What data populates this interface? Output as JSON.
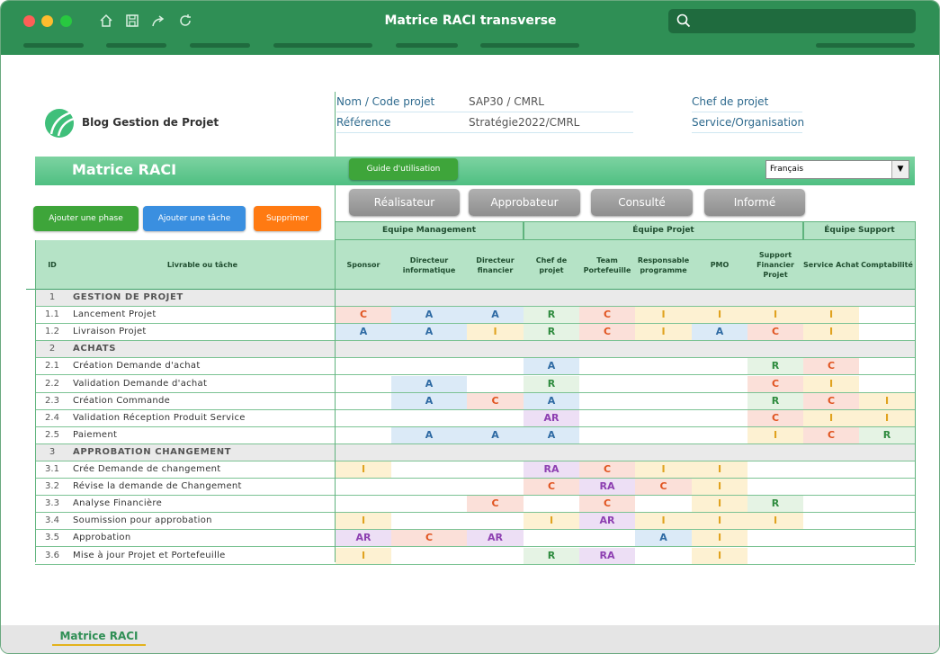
{
  "window": {
    "title": "Matrice RACI transverse",
    "sheet_tab": "Matrice RACI"
  },
  "logo": {
    "text": "Blog Gestion de Projet"
  },
  "info": {
    "nom_label": "Nom / Code projet",
    "nom_value": "SAP30 / CMRL",
    "ref_label": "Référence",
    "ref_value": "Stratégie2022/CMRL",
    "chef_label": "Chef de projet",
    "service_label": "Service/Organisation"
  },
  "banner": {
    "title": "Matrice RACI",
    "guide_label": "Guide d'utilisation",
    "language": "Français"
  },
  "roles": {
    "r": "Réalisateur",
    "a": "Approbateur",
    "c": "Consulté",
    "i": "Informé"
  },
  "actions": {
    "add_phase": "Ajouter une phase",
    "add_task": "Ajouter une tâche",
    "delete": "Supprimer"
  },
  "colors": {
    "R": "#2e8b3e",
    "A": "#2e6aa3",
    "C": "#e0531f",
    "I": "#e0a21f",
    "AR": "#8d3fb1",
    "RA": "#8d3fb1",
    "accent": "#2f8f55"
  },
  "table": {
    "id_header": "ID",
    "task_header": "Livrable ou tâche",
    "groups": [
      {
        "label": "Equipe Management",
        "span": 3
      },
      {
        "label": "Équipe Projet",
        "span": 5
      },
      {
        "label": "Équipe Support",
        "span": 2
      }
    ],
    "columns": [
      "Sponsor",
      "Directeur informatique",
      "Directeur financier",
      "Chef de projet",
      "Team Portefeuille",
      "Responsable programme",
      "PMO",
      "Support Financier Projet",
      "Service Achat",
      "Comptabilité"
    ],
    "rows": [
      {
        "id": "1",
        "task": "GESTION DE PROJET",
        "phase": true,
        "cells": []
      },
      {
        "id": "1.1",
        "task": "Lancement Projet",
        "cells": [
          "C",
          "A",
          "A",
          "R",
          "C",
          "I",
          "I",
          "I",
          "I",
          ""
        ]
      },
      {
        "id": "1.2",
        "task": "Livraison Projet",
        "cells": [
          "A",
          "A",
          "I",
          "R",
          "C",
          "I",
          "A",
          "C",
          "I",
          ""
        ]
      },
      {
        "id": "2",
        "task": "ACHATS",
        "phase": true,
        "cells": []
      },
      {
        "id": "2.1",
        "task": "Création Demande d'achat",
        "cells": [
          "",
          "",
          "",
          "A",
          "",
          "",
          "",
          "R",
          "C",
          ""
        ]
      },
      {
        "id": "2.2",
        "task": "Validation Demande d'achat",
        "cells": [
          "",
          "A",
          "",
          "R",
          "",
          "",
          "",
          "C",
          "I",
          ""
        ]
      },
      {
        "id": "2.3",
        "task": "Création Commande",
        "cells": [
          "",
          "A",
          "C",
          "A",
          "",
          "",
          "",
          "R",
          "C",
          "I"
        ]
      },
      {
        "id": "2.4",
        "task": "Validation Réception Produit Service",
        "cells": [
          "",
          "",
          "",
          "AR",
          "",
          "",
          "",
          "C",
          "I",
          "I"
        ]
      },
      {
        "id": "2.5",
        "task": "Paiement",
        "cells": [
          "",
          "A",
          "A",
          "A",
          "",
          "",
          "",
          "I",
          "C",
          "R"
        ]
      },
      {
        "id": "3",
        "task": "APPROBATION CHANGEMENT",
        "phase": true,
        "cells": []
      },
      {
        "id": "3.1",
        "task": "Crée Demande de changement",
        "cells": [
          "I",
          "",
          "",
          "RA",
          "C",
          "I",
          "I",
          "",
          "",
          ""
        ]
      },
      {
        "id": "3.2",
        "task": "Révise la demande de Changement",
        "cells": [
          "",
          "",
          "",
          "C",
          "RA",
          "C",
          "I",
          "",
          "",
          ""
        ]
      },
      {
        "id": "3.3",
        "task": "Analyse Financière",
        "cells": [
          "",
          "",
          "C",
          "",
          "C",
          "",
          "I",
          "R",
          "",
          ""
        ]
      },
      {
        "id": "3.4",
        "task": "Soumission pour approbation",
        "cells": [
          "I",
          "",
          "",
          "I",
          "AR",
          "I",
          "I",
          "I",
          "",
          ""
        ]
      },
      {
        "id": "3.5",
        "task": "Approbation",
        "cells": [
          "AR",
          "C",
          "AR",
          "",
          "",
          "A",
          "I",
          "",
          "",
          ""
        ]
      },
      {
        "id": "3.6",
        "task": "Mise à jour Projet et Portefeuille",
        "cells": [
          "I",
          "",
          "",
          "R",
          "RA",
          "",
          "I",
          "",
          "",
          ""
        ]
      }
    ]
  }
}
